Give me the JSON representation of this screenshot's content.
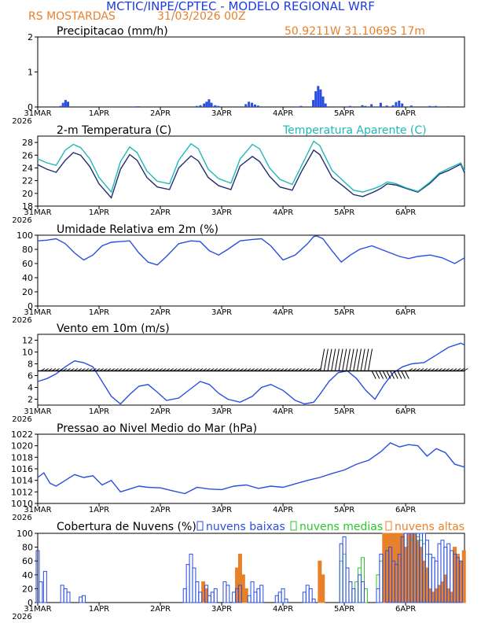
{
  "header": {
    "title": "MCTIC/INPE/CPTEC - MODELO REGIONAL WRF",
    "station": "RS MOSTARDAS",
    "run": "31/03/2026 00Z",
    "coords": "50.9211W 31.1069S 17m"
  },
  "colors": {
    "title": "#1e3ce0",
    "orange": "#e8812a",
    "line_blue": "#2a4ee0",
    "cyan": "#1fb8b8",
    "green": "#2ec42e",
    "black": "#000000"
  },
  "xaxis": {
    "ticks": [
      {
        "label": "31MAR",
        "day": 0
      },
      {
        "label": "1APR",
        "day": 1
      },
      {
        "label": "2APR",
        "day": 2
      },
      {
        "label": "3APR",
        "day": 3
      },
      {
        "label": "4APR",
        "day": 4
      },
      {
        "label": "5APR",
        "day": 5
      },
      {
        "label": "6APR",
        "day": 6
      }
    ],
    "year": "2026",
    "max_day": 6.96
  },
  "chart_data": [
    {
      "type": "bar",
      "title": "Precipitacao (mm/h)",
      "ylim": [
        0,
        2
      ],
      "yticks": [
        0,
        1,
        2
      ],
      "series": [
        {
          "name": "Precipitacao",
          "x": [
            0.38,
            0.42,
            0.46,
            0.5,
            1.62,
            1.66,
            2.6,
            2.66,
            2.72,
            2.76,
            2.8,
            2.84,
            2.9,
            2.95,
            3.4,
            3.45,
            3.5,
            3.55,
            3.6,
            4.3,
            4.5,
            4.54,
            4.58,
            4.62,
            4.66,
            4.7,
            5.1,
            5.3,
            5.35,
            5.45,
            5.6,
            5.7,
            5.8,
            5.85,
            5.9,
            5.95,
            6.1,
            6.4,
            6.45,
            6.5,
            6.7
          ],
          "values": [
            0.03,
            0.12,
            0.2,
            0.15,
            0.02,
            0.02,
            0.03,
            0.05,
            0.1,
            0.15,
            0.22,
            0.12,
            0.05,
            0.03,
            0.08,
            0.15,
            0.12,
            0.07,
            0.04,
            0.03,
            0.2,
            0.45,
            0.6,
            0.5,
            0.3,
            0.1,
            0.03,
            0.05,
            0.03,
            0.08,
            0.12,
            0.04,
            0.05,
            0.14,
            0.18,
            0.1,
            0.04,
            0.03,
            0.02,
            0.03,
            0.02
          ]
        }
      ]
    },
    {
      "type": "line",
      "title": "2-m Temperatura (C)",
      "legend_right": "Temperatura Aparente (C)",
      "ylim": [
        18,
        29
      ],
      "yticks": [
        18,
        20,
        22,
        24,
        26,
        28
      ],
      "series": [
        {
          "name": "Temperatura",
          "x": [
            0,
            0.15,
            0.3,
            0.45,
            0.58,
            0.7,
            0.85,
            1.0,
            1.2,
            1.35,
            1.5,
            1.62,
            1.78,
            1.95,
            2.15,
            2.3,
            2.5,
            2.62,
            2.78,
            2.95,
            3.15,
            3.3,
            3.5,
            3.62,
            3.78,
            3.95,
            4.15,
            4.3,
            4.5,
            4.6,
            4.65,
            4.8,
            5.0,
            5.15,
            5.3,
            5.5,
            5.6,
            5.7,
            5.85,
            6.0,
            6.2,
            6.4,
            6.55,
            6.7,
            6.9,
            6.96
          ],
          "values": [
            24.5,
            23.8,
            23.3,
            25.2,
            26.4,
            26,
            24.2,
            21.5,
            19.3,
            23.8,
            26.1,
            25.2,
            22.5,
            21,
            20.6,
            24,
            25.9,
            25.1,
            22.5,
            21.2,
            20.6,
            24.3,
            25.8,
            25,
            22.7,
            21,
            20.5,
            23.4,
            26.8,
            26.1,
            25.2,
            22.5,
            21,
            19.8,
            19.5,
            20.3,
            20.8,
            21.5,
            21.3,
            20.8,
            20.2,
            21.6,
            23,
            23.6,
            24.6,
            23.2
          ]
        },
        {
          "name": "Temperatura Aparente (C)",
          "x": [
            0,
            0.15,
            0.3,
            0.45,
            0.58,
            0.7,
            0.85,
            1.0,
            1.2,
            1.35,
            1.5,
            1.62,
            1.78,
            1.95,
            2.15,
            2.3,
            2.5,
            2.62,
            2.78,
            2.95,
            3.15,
            3.3,
            3.5,
            3.62,
            3.78,
            3.95,
            4.15,
            4.3,
            4.5,
            4.6,
            4.65,
            4.8,
            5.0,
            5.15,
            5.3,
            5.5,
            5.6,
            5.7,
            5.85,
            6.0,
            6.2,
            6.4,
            6.55,
            6.7,
            6.9,
            6.96
          ],
          "values": [
            25.4,
            24.8,
            24.4,
            26.8,
            27.7,
            27.2,
            25.4,
            22.5,
            20.2,
            25,
            27.3,
            26.4,
            23.5,
            21.9,
            21.5,
            25.2,
            27.8,
            27,
            23.8,
            22.3,
            21.6,
            25.4,
            27.7,
            27,
            24,
            22.2,
            21.4,
            24.3,
            28.2,
            27.5,
            26.5,
            23.6,
            21.8,
            20.5,
            20.2,
            20.8,
            21.2,
            21.8,
            21.5,
            20.9,
            20.3,
            21.8,
            23.2,
            23.9,
            24.8,
            23.5
          ]
        }
      ]
    },
    {
      "type": "line",
      "title": "Umidade Relativa em 2m (%)",
      "ylim": [
        0,
        100
      ],
      "yticks": [
        0,
        20,
        40,
        60,
        80,
        100
      ],
      "series": [
        {
          "name": "Umidade Relativa",
          "x": [
            0,
            0.15,
            0.3,
            0.45,
            0.6,
            0.75,
            0.9,
            1.05,
            1.2,
            1.35,
            1.5,
            1.65,
            1.8,
            1.95,
            2.1,
            2.3,
            2.5,
            2.65,
            2.8,
            2.95,
            3.1,
            3.3,
            3.5,
            3.65,
            3.8,
            4.0,
            4.2,
            4.4,
            4.5,
            4.55,
            4.65,
            4.8,
            4.95,
            5.1,
            5.25,
            5.45,
            5.6,
            5.75,
            5.9,
            6.05,
            6.2,
            6.4,
            6.6,
            6.8,
            6.96
          ],
          "values": [
            92,
            93,
            95,
            88,
            75,
            65,
            72,
            85,
            90,
            91,
            92,
            75,
            62,
            58,
            70,
            88,
            92,
            91,
            78,
            72,
            80,
            92,
            94,
            95,
            85,
            65,
            72,
            88,
            98,
            99,
            95,
            78,
            62,
            72,
            80,
            85,
            80,
            75,
            70,
            67,
            70,
            72,
            68,
            60,
            68
          ]
        }
      ]
    },
    {
      "type": "line",
      "title": "Vento em 10m (m/s)",
      "ylim": [
        1,
        13
      ],
      "yticks": [
        2,
        4,
        6,
        8,
        10,
        12
      ],
      "series": [
        {
          "name": "Vento",
          "x": [
            0,
            0.15,
            0.3,
            0.45,
            0.6,
            0.75,
            0.9,
            1.05,
            1.2,
            1.35,
            1.5,
            1.65,
            1.8,
            1.95,
            2.1,
            2.3,
            2.5,
            2.65,
            2.8,
            2.95,
            3.1,
            3.3,
            3.5,
            3.65,
            3.8,
            4.0,
            4.2,
            4.35,
            4.5,
            4.6,
            4.75,
            4.9,
            5.05,
            5.2,
            5.35,
            5.5,
            5.65,
            5.8,
            5.95,
            6.1,
            6.3,
            6.5,
            6.7,
            6.9,
            6.96
          ],
          "values": [
            5,
            5.5,
            6.3,
            7.5,
            8.5,
            8.2,
            7.5,
            5,
            2.5,
            1.2,
            2.8,
            4.2,
            4.5,
            3.2,
            1.8,
            2.2,
            3.8,
            5,
            4.5,
            3,
            2,
            1.5,
            2.5,
            4,
            4.5,
            3.5,
            1.8,
            1.2,
            1.5,
            2.8,
            5,
            6.5,
            6.8,
            5.5,
            3.5,
            2,
            4.5,
            6.5,
            7.5,
            8,
            8.2,
            9.5,
            10.8,
            11.5,
            11.2
          ]
        }
      ]
    },
    {
      "type": "line",
      "title": "Pressao ao Nivel Medio do Mar (hPa)",
      "ylim": [
        1010,
        1022
      ],
      "yticks": [
        1010,
        1012,
        1014,
        1016,
        1018,
        1020,
        1022
      ],
      "series": [
        {
          "name": "Pressao",
          "x": [
            0,
            0.1,
            0.2,
            0.3,
            0.45,
            0.6,
            0.75,
            0.9,
            1.05,
            1.2,
            1.35,
            1.5,
            1.65,
            1.8,
            2.0,
            2.2,
            2.4,
            2.6,
            2.8,
            3.0,
            3.2,
            3.4,
            3.6,
            3.8,
            4.0,
            4.2,
            4.4,
            4.6,
            4.8,
            5.0,
            5.2,
            5.4,
            5.6,
            5.75,
            5.9,
            6.05,
            6.2,
            6.35,
            6.5,
            6.65,
            6.8,
            6.96
          ],
          "values": [
            1014.5,
            1015.3,
            1013.5,
            1013,
            1014,
            1015,
            1014.5,
            1014.8,
            1013.2,
            1014,
            1012,
            1012.5,
            1013,
            1012.8,
            1012.7,
            1012.2,
            1011.7,
            1012.8,
            1012.5,
            1012.4,
            1013,
            1013.2,
            1012.6,
            1013,
            1012.8,
            1013.4,
            1014,
            1014.5,
            1015.2,
            1015.8,
            1016.8,
            1017.5,
            1019,
            1020.5,
            1019.8,
            1020.2,
            1020,
            1018.2,
            1019.5,
            1018.8,
            1016.8,
            1016.3
          ]
        }
      ]
    },
    {
      "type": "bar",
      "title": "Cobertura de Nuvens (%)",
      "ylim": [
        0,
        100
      ],
      "yticks": [
        0,
        20,
        40,
        60,
        80,
        100
      ],
      "legend": [
        "nuvens baixas",
        "nuvens medias",
        "nuvens altas"
      ],
      "series": [
        {
          "name": "nuvens baixas",
          "x": [
            0,
            0.05,
            0.12,
            0.4,
            0.45,
            0.5,
            0.7,
            0.75,
            2.4,
            2.45,
            2.5,
            2.55,
            2.6,
            2.65,
            2.75,
            2.8,
            2.85,
            2.9,
            3.05,
            3.1,
            3.2,
            3.25,
            3.3,
            3.45,
            3.5,
            3.55,
            3.6,
            3.65,
            3.9,
            3.95,
            4.0,
            4.05,
            4.35,
            4.4,
            4.45,
            4.5,
            4.95,
            5.0,
            5.05,
            5.1,
            5.15,
            5.25,
            5.3,
            5.55,
            5.6,
            5.7,
            5.75,
            5.8,
            5.85,
            5.9,
            5.95,
            6.0,
            6.05,
            6.1,
            6.15,
            6.2,
            6.25,
            6.3,
            6.35,
            6.4,
            6.45,
            6.5,
            6.55,
            6.6,
            6.65,
            6.7,
            6.75,
            6.8,
            6.85,
            6.9
          ],
          "values": [
            75,
            30,
            45,
            25,
            20,
            15,
            8,
            10,
            20,
            55,
            70,
            50,
            30,
            15,
            25,
            10,
            15,
            20,
            30,
            25,
            15,
            20,
            25,
            10,
            30,
            15,
            20,
            25,
            10,
            15,
            20,
            5,
            15,
            25,
            20,
            5,
            85,
            95,
            50,
            30,
            20,
            40,
            30,
            20,
            70,
            75,
            80,
            60,
            55,
            70,
            95,
            100,
            100,
            100,
            100,
            100,
            100,
            100,
            90,
            70,
            65,
            60,
            85,
            90,
            80,
            85,
            75,
            70,
            65,
            60
          ]
        },
        {
          "name": "nuvens medias",
          "x": [
            4.95,
            5.0,
            5.2,
            5.25,
            5.3,
            5.35,
            5.55,
            5.6,
            6.05,
            6.1,
            6.15,
            6.2,
            6.25,
            6.3,
            6.35
          ],
          "values": [
            60,
            70,
            30,
            50,
            65,
            20,
            40,
            60,
            80,
            90,
            100,
            95,
            90,
            85,
            70
          ]
        },
        {
          "name": "nuvens altas",
          "x": [
            2.7,
            2.75,
            3.25,
            3.3,
            3.35,
            3.4,
            4.6,
            4.65,
            5.65,
            5.7,
            5.75,
            5.8,
            5.85,
            5.9,
            5.95,
            6.0,
            6.05,
            6.1,
            6.15,
            6.2,
            6.25,
            6.3,
            6.35,
            6.4,
            6.45,
            6.5,
            6.55,
            6.6,
            6.65,
            6.7,
            6.75,
            6.8,
            6.85,
            6.9,
            6.95
          ],
          "values": [
            30,
            20,
            50,
            70,
            40,
            20,
            60,
            40,
            100,
            100,
            100,
            100,
            100,
            100,
            100,
            80,
            100,
            100,
            100,
            90,
            80,
            60,
            50,
            20,
            15,
            20,
            25,
            30,
            40,
            20,
            15,
            80,
            70,
            60,
            75
          ]
        }
      ]
    }
  ]
}
